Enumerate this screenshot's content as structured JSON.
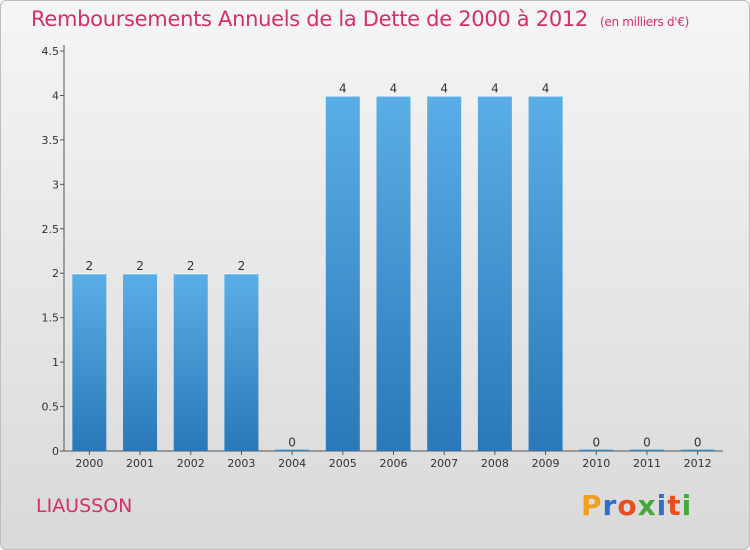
{
  "chart_data": {
    "type": "bar",
    "title": "Remboursements Annuels de la Dette de 2000 à 2012",
    "unit_note": "(en milliers d'€)",
    "categories": [
      "2000",
      "2001",
      "2002",
      "2003",
      "2004",
      "2005",
      "2006",
      "2007",
      "2008",
      "2009",
      "2010",
      "2011",
      "2012"
    ],
    "values": [
      2,
      2,
      2,
      2,
      0,
      4,
      4,
      4,
      4,
      4,
      0,
      0,
      0
    ],
    "data_labels": [
      "2",
      "2",
      "2",
      "2",
      "0",
      "4",
      "4",
      "4",
      "4",
      "4",
      "0",
      "0",
      "0"
    ],
    "y_ticks": [
      0,
      0.5,
      1,
      1.5,
      2,
      2.5,
      3,
      3.5,
      4,
      4.5
    ],
    "y_tick_labels": [
      "0",
      "0.5",
      "1",
      "1.5",
      "2",
      "2.5",
      "3",
      "3.5",
      "4",
      "4.5"
    ],
    "ylim": [
      0,
      4.5
    ],
    "xlabel": "",
    "ylabel": "",
    "bar_color": "#3f93d6",
    "bar_color_light": "#5aaee6",
    "bar_color_dark": "#2a78b8"
  },
  "footer": {
    "commune": "LIAUSSON",
    "brand": "Proxiti"
  },
  "colors": {
    "title": "#d2306a",
    "brand_letters": [
      "#f0a020",
      "#2e6fc8",
      "#e84f1e",
      "#46a83a",
      "#2e6fc8",
      "#e84f1e",
      "#46a83a"
    ]
  }
}
